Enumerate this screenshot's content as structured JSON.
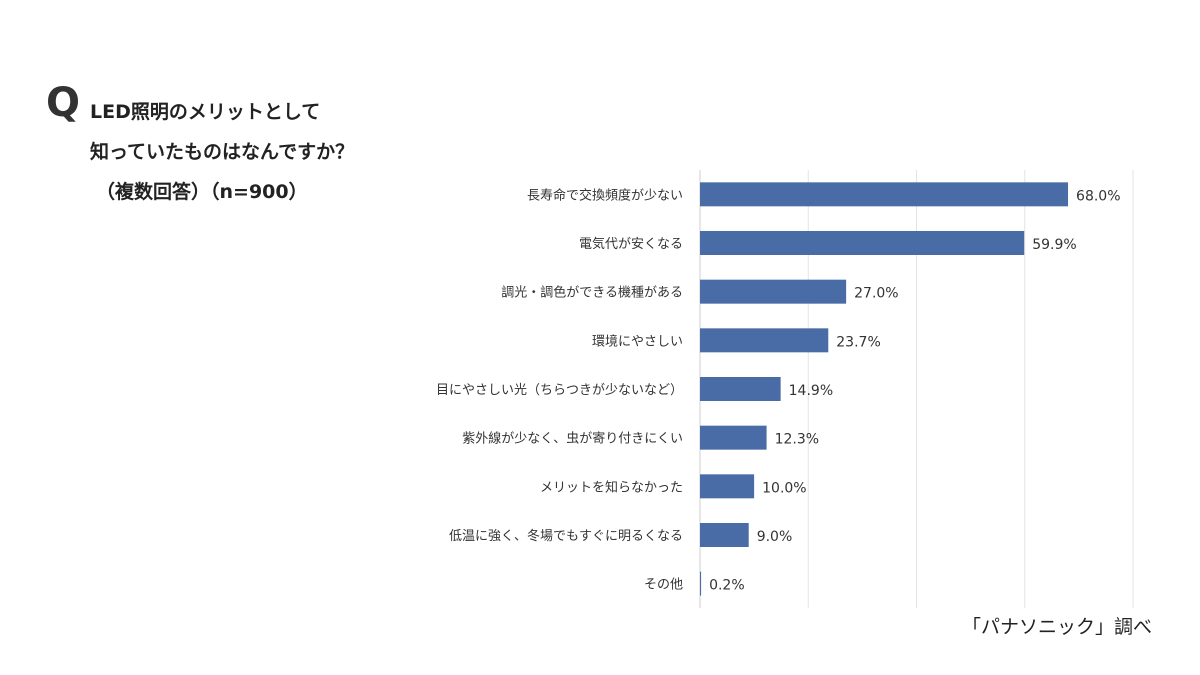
{
  "question_mark": "Q",
  "title_lines": [
    "LED照明のメリットとして",
    "知っていたものはなんですか？",
    "（複数回答）（n=900）"
  ],
  "source": "「パナソニック」調べ",
  "chart_data": {
    "type": "bar",
    "orientation": "horizontal",
    "categories": [
      "長寿命で交換頻度が少ない",
      "電気代が安くなる",
      "調光・調色ができる機種がある",
      "環境にやさしい",
      "目にやさしい光（ちらつきが少ないなど）",
      "紫外線が少なく、虫が寄り付きにくい",
      "メリットを知らなかった",
      "低温に強く、冬場でもすぐに明るくなる",
      "その他"
    ],
    "values": [
      68.0,
      59.9,
      27.0,
      23.7,
      14.9,
      12.3,
      10.0,
      9.0,
      0.2
    ],
    "data_labels": [
      "68.0%",
      "59.9%",
      "27.0%",
      "23.7%",
      "14.9%",
      "12.3%",
      "10.0%",
      "9.0%",
      "0.2%"
    ],
    "unit": "%",
    "xlim": [
      0,
      80
    ],
    "grid": true,
    "grid_step": 20,
    "bar_color": "#4a6ca6",
    "grid_color": "#e3e3e3"
  }
}
